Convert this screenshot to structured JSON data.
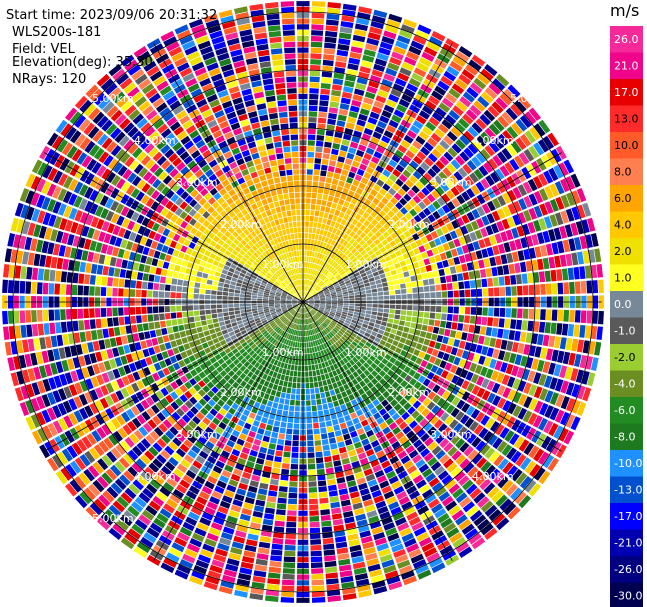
{
  "chart_data": {
    "type": "ppi",
    "info": {
      "start_time": "Start time: 2023/09/06 20:31:32",
      "instrument": "WLS200s-181",
      "field": "Field: VEL",
      "elevation": "Elevation(deg): 35.30",
      "nrays": "NRays: 120"
    },
    "range_ring_labels": {
      "r1": "1.00km",
      "r2": "2.00km",
      "r3": "3.00km",
      "r4": "4.00km",
      "r5": "5.00km"
    },
    "max_range_km": 5.15,
    "colorbar": {
      "unit": "m/s",
      "ticks": [
        "26.0",
        "21.0",
        "17.0",
        "13.0",
        "10.0",
        "8.0",
        "6.0",
        "4.0",
        "2.0",
        "1.0",
        "0.0",
        "-1.0",
        "-2.0",
        "-4.0",
        "-6.0",
        "-8.0",
        "-10.0",
        "-13.0",
        "-17.0",
        "-21.0",
        "-26.0",
        "-30.0"
      ],
      "colors": [
        "#f52a98",
        "#f0058a",
        "#e60000",
        "#ff2a2a",
        "#ff5a2a",
        "#ff7f50",
        "#ffa500",
        "#ffc800",
        "#f0e000",
        "#ffff20",
        "#778899",
        "#5a5a5a",
        "#9acd32",
        "#6b8e23",
        "#228b22",
        "#1e7a1e",
        "#1e90ff",
        "#0050d0",
        "#0000ff",
        "#0000b0",
        "#000080",
        "#000050"
      ]
    },
    "velocity_profile": {
      "near_range_km": 1.6,
      "north_near_ms": 4.0,
      "south_near_ms": -6.0,
      "noise_start_km": 2.1
    }
  }
}
